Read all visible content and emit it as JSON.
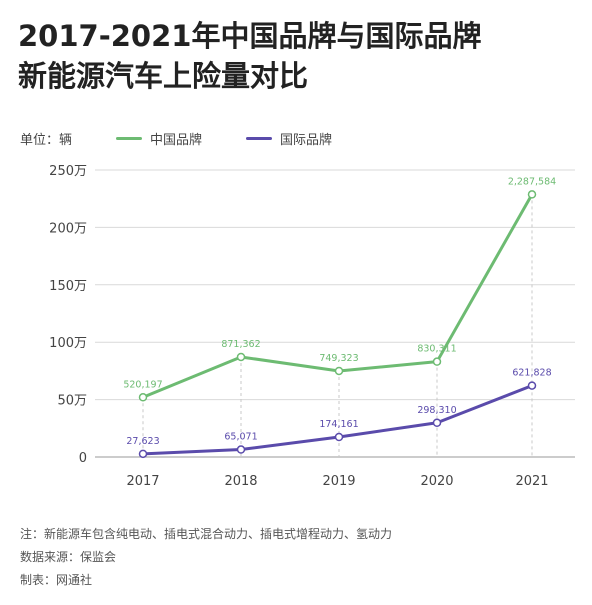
{
  "title": {
    "line1": "2017-2021年中国品牌与国际品牌",
    "line2": "新能源汽车上险量对比"
  },
  "unit_label": "单位：辆",
  "colors": {
    "china": "#6dbb72",
    "intl": "#5a4bab",
    "grid": "#d9d9d9",
    "axis": "#666666"
  },
  "chart_data": {
    "type": "line",
    "x": [
      "2017",
      "2018",
      "2019",
      "2020",
      "2021"
    ],
    "ylim": [
      0,
      2500000
    ],
    "yticks": [
      0,
      500000,
      1000000,
      1500000,
      2000000,
      2500000
    ],
    "ytick_labels": [
      "0",
      "50万",
      "100万",
      "150万",
      "200万",
      "250万"
    ],
    "series": [
      {
        "name": "中国品牌",
        "color": "#6dbb72",
        "values": [
          520197,
          871362,
          749323,
          830311,
          2287584
        ],
        "labels": [
          "520,197",
          "871,362",
          "749,323",
          "830,311",
          "2,287,584"
        ]
      },
      {
        "name": "国际品牌",
        "color": "#5a4bab",
        "values": [
          27623,
          65071,
          174161,
          298310,
          621828
        ],
        "labels": [
          "27,623",
          "65,071",
          "174,161",
          "298,310",
          "621,828"
        ]
      }
    ],
    "grid": "horizontal solid, vertical dashed",
    "legend": "top-left"
  },
  "footer": {
    "note": "注：新能源车包含纯电动、插电式混合动力、插电式增程动力、氢动力",
    "source": "数据来源：保监会",
    "maker": "制表：网通社"
  }
}
